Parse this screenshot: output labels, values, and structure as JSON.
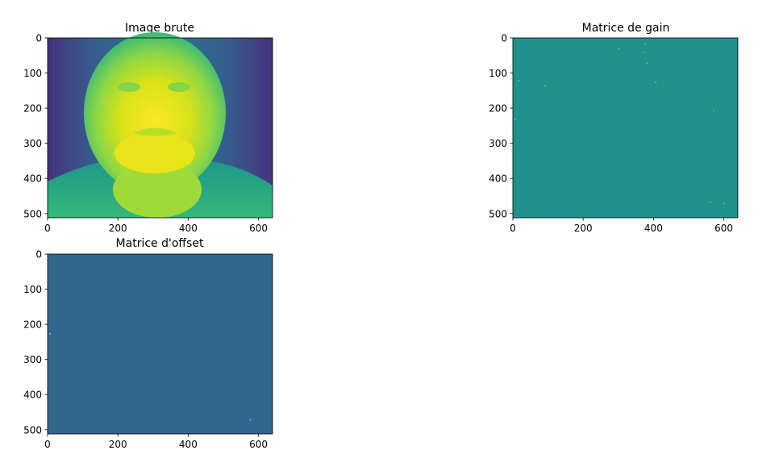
{
  "chart_data": [
    {
      "type": "heatmap",
      "title": "Image brute",
      "colormap": "viridis",
      "xlim": [
        0,
        640
      ],
      "ylim": [
        512,
        0
      ],
      "xticks": [
        0,
        200,
        400,
        600
      ],
      "yticks": [
        0,
        100,
        200,
        300,
        400,
        500
      ],
      "xtick_labels": [
        "0",
        "200",
        "400",
        "600"
      ],
      "ytick_labels": [
        "0",
        "100",
        "200",
        "300",
        "400",
        "500"
      ],
      "content": "face",
      "colors": {
        "background": "#482a78",
        "mid": "#21918c",
        "high": "#e6e419",
        "peak": "#fde725"
      }
    },
    {
      "type": "heatmap",
      "title": "Matrice de gain",
      "colormap": "viridis",
      "xlim": [
        0,
        640
      ],
      "ylim": [
        512,
        0
      ],
      "xticks": [
        0,
        200,
        400,
        600
      ],
      "yticks": [
        0,
        100,
        200,
        300,
        400,
        500
      ],
      "xtick_labels": [
        "0",
        "200",
        "400",
        "600"
      ],
      "ytick_labels": [
        "0",
        "100",
        "200",
        "300",
        "400",
        "500"
      ],
      "content": "uniform",
      "colors": {
        "fill": "#21918c",
        "specks": "#7fd34e"
      }
    },
    {
      "type": "heatmap",
      "title": "Matrice d'offset",
      "colormap": "viridis",
      "xlim": [
        0,
        640
      ],
      "ylim": [
        512,
        0
      ],
      "xticks": [
        0,
        200,
        400,
        600
      ],
      "yticks": [
        0,
        100,
        200,
        300,
        400,
        500
      ],
      "xtick_labels": [
        "0",
        "200",
        "400",
        "600"
      ],
      "ytick_labels": [
        "0",
        "100",
        "200",
        "300",
        "400",
        "500"
      ],
      "content": "uniform",
      "colors": {
        "fill": "#31668e",
        "specks": "#b5de2b"
      }
    }
  ]
}
